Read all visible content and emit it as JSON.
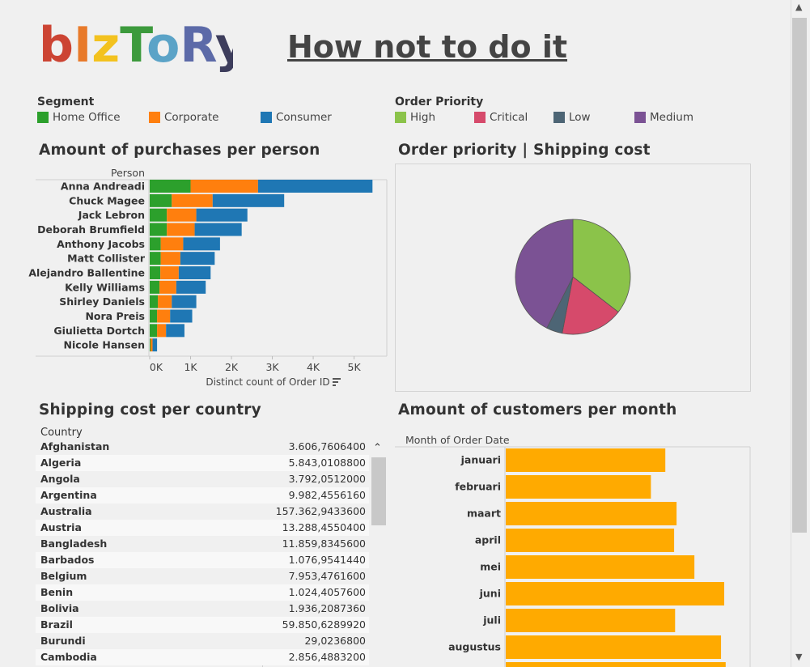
{
  "header": {
    "logo_text": "bIzToRy",
    "logo_colors": [
      "#cc4433",
      "#e87a2a",
      "#f3c21f",
      "#3c9a3c",
      "#5ba3c7",
      "#5c6aa8",
      "#3d3d5c"
    ],
    "title": "How not to do it"
  },
  "legends": {
    "segment": {
      "title": "Segment",
      "items": [
        {
          "label": "Home Office",
          "color": "#2ca02c"
        },
        {
          "label": "Corporate",
          "color": "#ff7f0e"
        },
        {
          "label": "Consumer",
          "color": "#1f77b4"
        }
      ]
    },
    "priority": {
      "title": "Order Priority",
      "items": [
        {
          "label": "High",
          "color": "#8bc34a"
        },
        {
          "label": "Critical",
          "color": "#d64a6b"
        },
        {
          "label": "Low",
          "color": "#4d6575"
        },
        {
          "label": "Medium",
          "color": "#7b5294"
        }
      ]
    }
  },
  "sheets": {
    "purchases": "Amount of purchases per person",
    "priority": "Order priority | Shipping cost",
    "shipping": "Shipping cost per country",
    "customers": "Amount of customers per month"
  },
  "chart_data": [
    {
      "type": "bar",
      "orientation": "horizontal",
      "stacked": true,
      "title": "Amount of purchases per person",
      "ylabel": "Person",
      "xlabel": "Distinct count of Order ID",
      "xlim": [
        0,
        5800
      ],
      "xticks": [
        "0K",
        "1K",
        "2K",
        "3K",
        "4K",
        "5K"
      ],
      "categories": [
        "Anna Andreadi",
        "Chuck Magee",
        "Jack Lebron",
        "Deborah Brumfield",
        "Anthony Jacobs",
        "Matt Collister",
        "Alejandro Ballentine",
        "Kelly Williams",
        "Shirley Daniels",
        "Nora Preis",
        "Giulietta Dortch",
        "Nicole Hansen"
      ],
      "series": [
        {
          "name": "Home Office",
          "color": "#2ca02c",
          "values": [
            1000,
            540,
            420,
            420,
            270,
            270,
            260,
            240,
            200,
            180,
            180,
            20
          ]
        },
        {
          "name": "Corporate",
          "color": "#ff7f0e",
          "values": [
            1650,
            1000,
            720,
            680,
            550,
            480,
            450,
            410,
            340,
            320,
            220,
            50
          ]
        },
        {
          "name": "Consumer",
          "color": "#1f77b4",
          "values": [
            2800,
            1750,
            1250,
            1150,
            900,
            840,
            780,
            720,
            600,
            540,
            450,
            110
          ]
        }
      ]
    },
    {
      "type": "pie",
      "title": "Order priority | Shipping cost",
      "slices": [
        {
          "name": "High",
          "color": "#8bc34a",
          "value": 35.5
        },
        {
          "name": "Critical",
          "color": "#d64a6b",
          "value": 17.5
        },
        {
          "name": "Low",
          "color": "#4d6575",
          "value": 4.5
        },
        {
          "name": "Medium",
          "color": "#7b5294",
          "value": 42.5
        }
      ]
    },
    {
      "type": "table",
      "title": "Shipping cost per country",
      "column": "Country",
      "rows": [
        {
          "country": "Afghanistan",
          "value": "3.606,7606400"
        },
        {
          "country": "Algeria",
          "value": "5.843,0108800"
        },
        {
          "country": "Angola",
          "value": "3.792,0512000"
        },
        {
          "country": "Argentina",
          "value": "9.982,4556160"
        },
        {
          "country": "Australia",
          "value": "157.362,9433600"
        },
        {
          "country": "Austria",
          "value": "13.288,4550400"
        },
        {
          "country": "Bangladesh",
          "value": "11.859,8345600"
        },
        {
          "country": "Barbados",
          "value": "1.076,9541440"
        },
        {
          "country": "Belgium",
          "value": "7.953,4761600"
        },
        {
          "country": "Benin",
          "value": "1.024,4057600"
        },
        {
          "country": "Bolivia",
          "value": "1.936,2087360"
        },
        {
          "country": "Brazil",
          "value": "59.850,6289920"
        },
        {
          "country": "Burundi",
          "value": "29,0236800"
        },
        {
          "country": "Cambodia",
          "value": "2.856,4883200"
        }
      ]
    },
    {
      "type": "bar",
      "orientation": "horizontal",
      "title": "Amount of customers per month",
      "ylabel": "Month of Order Date",
      "color": "#ffaa00",
      "xlim": [
        0,
        1
      ],
      "categories": [
        "januari",
        "februari",
        "maart",
        "april",
        "mei",
        "juni",
        "juli",
        "augustus"
      ],
      "values": [
        0.653,
        0.594,
        0.699,
        0.689,
        0.772,
        0.894,
        0.693,
        0.881
      ]
    }
  ]
}
